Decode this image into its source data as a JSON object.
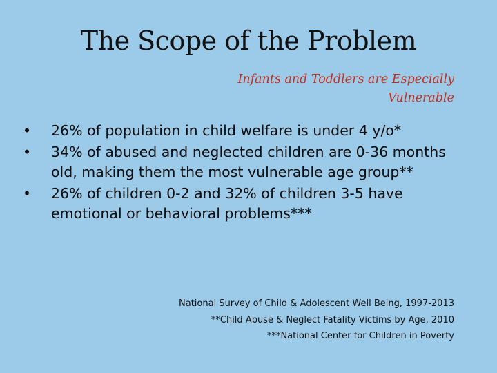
{
  "slide": {
    "title": "The Scope of the Problem",
    "subtitle_line1": "Infants and Toddlers are Especially",
    "subtitle_line2": "Vulnerable",
    "bullets": [
      {
        "marker": "•",
        "text": "26% of population in child welfare is under 4 y/o*"
      },
      {
        "marker": "•",
        "text": "34% of abused and neglected children are 0-36 months old, making them the most vulnerable age group**"
      },
      {
        "marker": "•",
        "text": "26% of children 0-2 and 32% of children 3-5 have emotional or behavioral problems***"
      }
    ],
    "footnotes": [
      "National Survey of Child & Adolescent Well Being, 1997-2013",
      "**Child Abuse & Neglect Fatality Victims by Age, 2010",
      "***National Center for Children in Poverty"
    ],
    "colors": {
      "background": "#9ccbea",
      "title": "#111111",
      "subtitle": "#c42d1d",
      "text": "#0d0d0d"
    }
  }
}
